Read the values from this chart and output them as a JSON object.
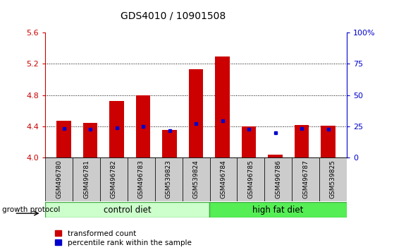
{
  "title": "GDS4010 / 10901508",
  "samples": [
    "GSM496780",
    "GSM496781",
    "GSM496782",
    "GSM496783",
    "GSM539823",
    "GSM539824",
    "GSM496784",
    "GSM496785",
    "GSM496786",
    "GSM496787",
    "GSM539825"
  ],
  "red_values": [
    4.47,
    4.44,
    4.72,
    4.8,
    4.35,
    5.13,
    5.29,
    4.4,
    4.04,
    4.42,
    4.41
  ],
  "blue_values": [
    4.37,
    4.36,
    4.38,
    4.4,
    4.34,
    4.43,
    4.47,
    4.36,
    4.32,
    4.37,
    4.36
  ],
  "ylim_left": [
    4.0,
    5.6
  ],
  "ylim_right": [
    0,
    100
  ],
  "yticks_left": [
    4.0,
    4.4,
    4.8,
    5.2,
    5.6
  ],
  "yticks_right": [
    0,
    25,
    50,
    75,
    100
  ],
  "n_control": 6,
  "n_highfat": 5,
  "control_diet_label": "control diet",
  "high_fat_diet_label": "high fat diet",
  "growth_protocol_label": "growth protocol",
  "legend_red": "transformed count",
  "legend_blue": "percentile rank within the sample",
  "bar_width": 0.55,
  "red_color": "#cc0000",
  "blue_color": "#0000cc",
  "control_bg": "#ccffcc",
  "highfat_bg": "#55ee55",
  "xticklabel_bg": "#cccccc",
  "grid_color": "#000000"
}
